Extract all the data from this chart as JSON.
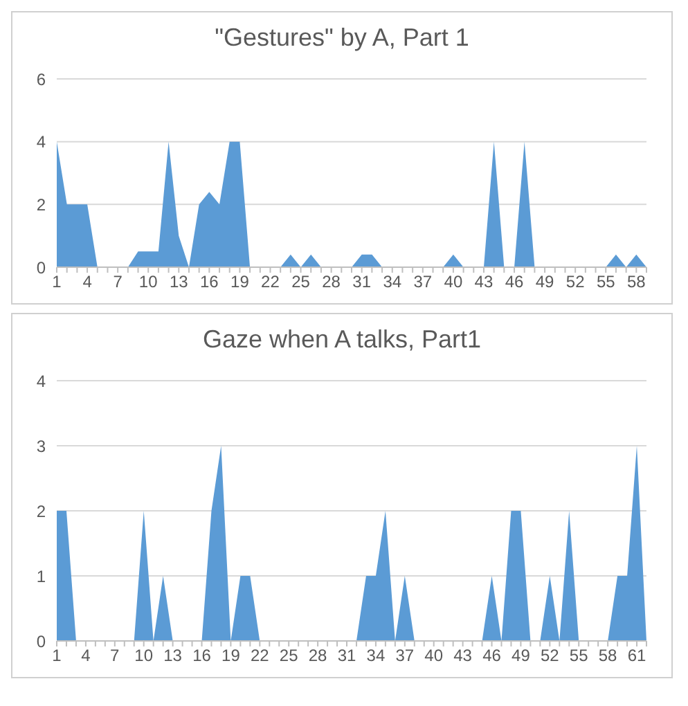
{
  "chart_data": [
    {
      "type": "area",
      "title": "\"Gestures\" by A, Part 1",
      "categories": [
        "1",
        null,
        null,
        "4",
        null,
        null,
        "7",
        null,
        null,
        "10",
        null,
        null,
        "13",
        null,
        null,
        "16",
        null,
        null,
        "19",
        null,
        null,
        "22",
        null,
        null,
        "25",
        null,
        null,
        "28",
        null,
        null,
        "31",
        null,
        null,
        "34",
        null,
        null,
        "37",
        null,
        null,
        "40",
        null,
        null,
        "43",
        null,
        null,
        "46",
        null,
        null,
        "49",
        null,
        null,
        "52",
        null,
        null,
        "55",
        null,
        null,
        "58",
        null
      ],
      "values": [
        4,
        2,
        2,
        2,
        0,
        0,
        0,
        0,
        0.5,
        0.5,
        0.5,
        4,
        1,
        0,
        2,
        2.4,
        2,
        4,
        4,
        0,
        0,
        0,
        0,
        0.4,
        0,
        0.4,
        0,
        0,
        0,
        0,
        0.4,
        0.4,
        0,
        0,
        0,
        0,
        0,
        0,
        0,
        0.4,
        0,
        0,
        0,
        4,
        0,
        0,
        4,
        0,
        0,
        0,
        0,
        0,
        0,
        0,
        0,
        0.4,
        0,
        0.4,
        0
      ],
      "color": "#5b9bd5",
      "ylim": [
        0,
        6
      ],
      "yticks": [
        0,
        2,
        4,
        6
      ],
      "grid": "y"
    },
    {
      "type": "area",
      "title": "Gaze when A talks, Part1",
      "categories": [
        "1",
        null,
        null,
        "4",
        null,
        null,
        "7",
        null,
        null,
        "10",
        null,
        null,
        "13",
        null,
        null,
        "16",
        null,
        null,
        "19",
        null,
        null,
        "22",
        null,
        null,
        "25",
        null,
        null,
        "28",
        null,
        null,
        "31",
        null,
        null,
        "34",
        null,
        null,
        "37",
        null,
        null,
        "40",
        null,
        null,
        "43",
        null,
        null,
        "46",
        null,
        null,
        "49",
        null,
        null,
        "52",
        null,
        null,
        "55",
        null,
        null,
        "58",
        null,
        null,
        "61",
        null
      ],
      "values": [
        2,
        2,
        0,
        0,
        0,
        0,
        0,
        0,
        0,
        2,
        0,
        1,
        0,
        0,
        0,
        0,
        2,
        3,
        0,
        1,
        1,
        0,
        0,
        0,
        0,
        0,
        0,
        0,
        0,
        0,
        0,
        0,
        1,
        1,
        2,
        0,
        1,
        0,
        0,
        0,
        0,
        0,
        0,
        0,
        0,
        1,
        0,
        2,
        2,
        0,
        0,
        1,
        0,
        2,
        0,
        0,
        0,
        0,
        1,
        1,
        3,
        0
      ],
      "color": "#5b9bd5",
      "ylim": [
        0,
        4
      ],
      "yticks": [
        0,
        1,
        2,
        3,
        4
      ],
      "grid": "y"
    }
  ]
}
